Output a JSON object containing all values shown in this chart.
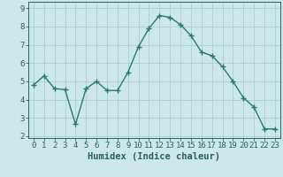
{
  "x": [
    0,
    1,
    2,
    3,
    4,
    5,
    6,
    7,
    8,
    9,
    10,
    11,
    12,
    13,
    14,
    15,
    16,
    17,
    18,
    19,
    20,
    21,
    22,
    23
  ],
  "y": [
    4.8,
    5.3,
    4.6,
    4.55,
    2.65,
    4.6,
    5.0,
    4.5,
    4.5,
    5.5,
    6.9,
    7.9,
    8.6,
    8.5,
    8.1,
    7.5,
    6.6,
    6.4,
    5.8,
    5.0,
    4.1,
    3.6,
    2.4,
    2.4
  ],
  "line_color": "#2a7a6a",
  "marker": "+",
  "marker_size": 4,
  "marker_lw": 1.0,
  "line_width": 1.0,
  "bg_color": "#cce8e8",
  "grid_color": "#aacece",
  "spine_color": "#2a6060",
  "tick_color": "#2a6060",
  "xlabel": "Humidex (Indice chaleur)",
  "xlabel_fontsize": 7.5,
  "xlabel_fontweight": "bold",
  "tick_fontsize": 6.5,
  "xlim": [
    -0.5,
    23.5
  ],
  "ylim": [
    1.9,
    9.35
  ],
  "yticks": [
    2,
    3,
    4,
    5,
    6,
    7,
    8,
    9
  ],
  "xticks": [
    0,
    1,
    2,
    3,
    4,
    5,
    6,
    7,
    8,
    9,
    10,
    11,
    12,
    13,
    14,
    15,
    16,
    17,
    18,
    19,
    20,
    21,
    22,
    23
  ]
}
